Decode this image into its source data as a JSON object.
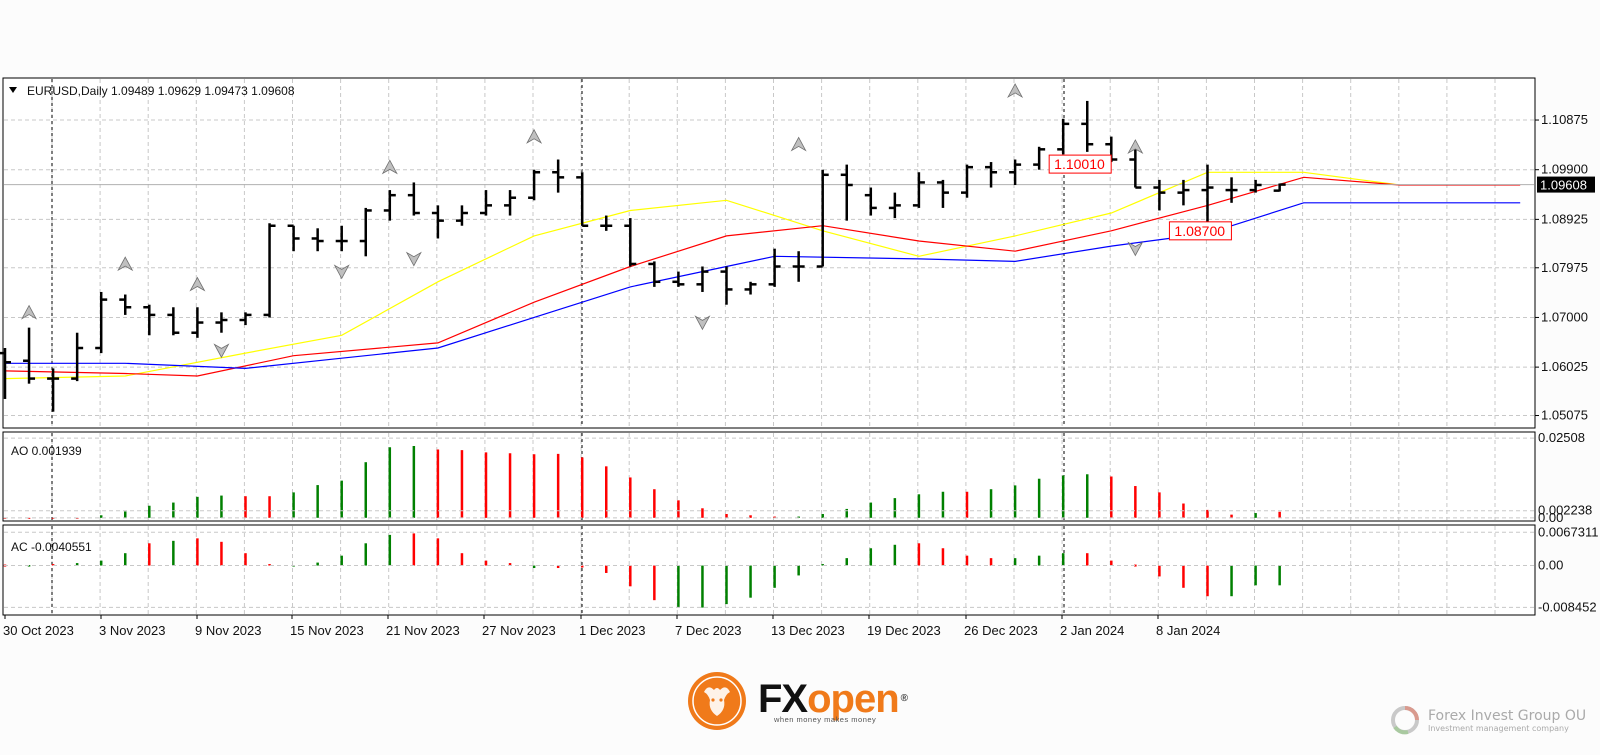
{
  "chart_data": [
    {
      "type": "ohlc",
      "header": "EURUSD,Daily  1.09489 1.09629 1.09473 1.09608",
      "symbol": "EURUSD",
      "timeframe": "Daily",
      "last_ohlc": {
        "open": 1.09489,
        "high": 1.09629,
        "low": 1.09473,
        "close": 1.09608
      },
      "current_price_label": "1.09608",
      "ylim": [
        1.0483,
        1.117
      ],
      "y_ticks": [
        "1.10875",
        "1.09900",
        "1.08925",
        "1.07975",
        "1.07000",
        "1.06025",
        "1.05075"
      ],
      "x_ticks": [
        "30 Oct 2023",
        "3 Nov 2023",
        "9 Nov 2023",
        "15 Nov 2023",
        "21 Nov 2023",
        "27 Nov 2023",
        "1 Dec 2023",
        "7 Dec 2023",
        "13 Dec 2023",
        "19 Dec 2023",
        "26 Dec 2023",
        "2 Jan 2024",
        "8 Jan 2024"
      ],
      "month_separators": [
        "1 Nov 2023",
        "1 Dec 2023",
        "1 Jan 2024"
      ],
      "grid": true,
      "bars": [
        [
          1.063,
          1.064,
          1.054,
          1.0612
        ],
        [
          1.0615,
          1.068,
          1.057,
          1.058
        ],
        [
          1.058,
          1.06,
          1.0515,
          1.058
        ],
        [
          1.058,
          1.067,
          1.0575,
          1.064
        ],
        [
          1.064,
          1.075,
          1.063,
          1.0735
        ],
        [
          1.0735,
          1.0745,
          1.0705,
          1.072
        ],
        [
          1.072,
          1.0725,
          1.0665,
          1.0705
        ],
        [
          1.0705,
          1.072,
          1.0665,
          1.067
        ],
        [
          1.067,
          1.072,
          1.066,
          1.069
        ],
        [
          1.069,
          1.071,
          1.067,
          1.0695
        ],
        [
          1.0695,
          1.071,
          1.0685,
          1.0705
        ],
        [
          1.0705,
          1.0885,
          1.07,
          1.088
        ],
        [
          1.088,
          1.088,
          1.083,
          1.0855
        ],
        [
          1.0855,
          1.0875,
          1.083,
          1.085
        ],
        [
          1.085,
          1.088,
          1.083,
          1.085
        ],
        [
          1.085,
          1.0915,
          1.082,
          1.091
        ],
        [
          1.091,
          1.095,
          1.089,
          1.094
        ],
        [
          1.094,
          1.0965,
          1.09,
          1.0905
        ],
        [
          1.0905,
          1.092,
          1.0855,
          1.089
        ],
        [
          1.089,
          1.092,
          1.088,
          1.0905
        ],
        [
          1.0905,
          1.095,
          1.09,
          1.092
        ],
        [
          1.092,
          1.095,
          1.09,
          1.0935
        ],
        [
          1.0935,
          1.099,
          1.093,
          1.0985
        ],
        [
          1.0985,
          1.101,
          1.0945,
          1.0975
        ],
        [
          1.0975,
          1.0985,
          1.088,
          1.088
        ],
        [
          1.088,
          1.09,
          1.087,
          1.088
        ],
        [
          1.088,
          1.0895,
          1.08,
          1.0805
        ],
        [
          1.0805,
          1.081,
          1.076,
          1.077
        ],
        [
          1.077,
          1.079,
          1.076,
          1.0765
        ],
        [
          1.0765,
          1.08,
          1.075,
          1.079
        ],
        [
          1.079,
          1.08,
          1.0725,
          1.0755
        ],
        [
          1.0755,
          1.077,
          1.0745,
          1.0765
        ],
        [
          1.0765,
          1.0835,
          1.076,
          1.08
        ],
        [
          1.08,
          1.083,
          1.077,
          1.08
        ],
        [
          1.08,
          1.099,
          1.08,
          1.098
        ],
        [
          1.098,
          1.1,
          1.089,
          1.096
        ],
        [
          1.094,
          1.0955,
          1.09,
          1.0915
        ],
        [
          1.0915,
          1.0945,
          1.0895,
          1.092
        ],
        [
          1.092,
          1.0985,
          1.0915,
          1.0965
        ],
        [
          1.0965,
          1.097,
          1.0915,
          1.0945
        ],
        [
          1.0945,
          1.1,
          1.0935,
          1.0995
        ],
        [
          1.0995,
          1.1005,
          1.0955,
          1.0985
        ],
        [
          1.0985,
          1.101,
          1.096,
          1.1
        ],
        [
          1.1,
          1.1035,
          1.099,
          1.103
        ],
        [
          1.103,
          1.109,
          1.102,
          1.108
        ],
        [
          1.108,
          1.1125,
          1.1025,
          1.104
        ],
        [
          1.104,
          1.1055,
          1.1005,
          1.101
        ],
        [
          1.101,
          1.104,
          1.0955,
          1.0955
        ],
        [
          1.0955,
          1.097,
          1.091,
          1.0945
        ],
        [
          1.0945,
          1.097,
          1.092,
          1.095
        ],
        [
          1.095,
          1.1,
          1.087,
          1.0955
        ],
        [
          1.095,
          1.0975,
          1.0925,
          1.095
        ],
        [
          1.095,
          1.097,
          1.0945,
          1.096
        ],
        [
          1.09489,
          1.09629,
          1.09473,
          1.09608
        ]
      ],
      "moving_averages": [
        {
          "color": "#ffff00",
          "points": [
            [
              0,
              1.058
            ],
            [
              5,
              1.0585
            ],
            [
              10,
              1.063
            ],
            [
              14,
              1.0665
            ],
            [
              18,
              1.077
            ],
            [
              22,
              1.086
            ],
            [
              26,
              1.091
            ],
            [
              30,
              1.093
            ],
            [
              34,
              1.087
            ],
            [
              38,
              1.082
            ],
            [
              42,
              1.086
            ],
            [
              46,
              1.0905
            ],
            [
              50,
              1.0985
            ],
            [
              54,
              1.0985
            ],
            [
              58,
              1.096
            ]
          ]
        },
        {
          "color": "#ff0000",
          "points": [
            [
              0,
              1.0595
            ],
            [
              5,
              1.059
            ],
            [
              8,
              1.0585
            ],
            [
              12,
              1.0625
            ],
            [
              18,
              1.065
            ],
            [
              22,
              1.073
            ],
            [
              26,
              1.08
            ],
            [
              30,
              1.086
            ],
            [
              34,
              1.088
            ],
            [
              38,
              1.085
            ],
            [
              42,
              1.083
            ],
            [
              46,
              1.087
            ],
            [
              50,
              1.092
            ],
            [
              54,
              1.0975
            ],
            [
              58,
              1.096
            ],
            [
              63,
              1.096
            ]
          ]
        },
        {
          "color": "#0000ff",
          "points": [
            [
              0,
              1.061
            ],
            [
              5,
              1.061
            ],
            [
              10,
              1.06
            ],
            [
              14,
              1.062
            ],
            [
              18,
              1.064
            ],
            [
              22,
              1.07
            ],
            [
              26,
              1.076
            ],
            [
              30,
              1.08
            ],
            [
              32,
              1.082
            ],
            [
              38,
              1.0815
            ],
            [
              42,
              1.081
            ],
            [
              46,
              1.084
            ],
            [
              50,
              1.0865
            ],
            [
              54,
              1.0925
            ],
            [
              58,
              1.0925
            ],
            [
              63,
              1.0925
            ]
          ]
        }
      ],
      "arrows_up": [
        [
          1,
          1.069
        ],
        [
          5,
          1.0785
        ],
        [
          8,
          1.0745
        ],
        [
          16,
          1.0975
        ],
        [
          22,
          1.1035
        ],
        [
          33,
          1.102
        ],
        [
          42,
          1.1125
        ],
        [
          47,
          1.1015
        ]
      ],
      "arrows_down": [
        [
          9,
          1.0655
        ],
        [
          14,
          1.081
        ],
        [
          17,
          1.0835
        ],
        [
          29,
          1.071
        ],
        [
          47,
          1.0855
        ]
      ],
      "annotations": [
        {
          "text": "1.10010",
          "bar": 43.5,
          "value": 1.1001,
          "color": "#ff0000"
        },
        {
          "text": "1.08700",
          "bar": 48.5,
          "value": 1.087,
          "color": "#ff0000"
        }
      ]
    },
    {
      "type": "bar",
      "name": "AO",
      "header": "AO 0.001939",
      "y_ticks": [
        "0.02508",
        "0.002238",
        "0.00"
      ],
      "ylim": [
        -0.001,
        0.027
      ],
      "values": [
        0,
        0,
        0,
        0,
        0.0008,
        0.002,
        0.0038,
        0.0048,
        0.0066,
        0.007,
        0.0068,
        0.0068,
        0.008,
        0.0103,
        0.0117,
        0.0175,
        0.0222,
        0.0226,
        0.0215,
        0.0213,
        0.0206,
        0.0203,
        0.02,
        0.0201,
        0.019,
        0.0162,
        0.0127,
        0.009,
        0.0055,
        0.003,
        0.0012,
        0.0008,
        0.0004,
        0.0004,
        0.0012,
        0.0028,
        0.0048,
        0.0062,
        0.0074,
        0.0082,
        0.0082,
        0.009,
        0.0102,
        0.0123,
        0.0133,
        0.0137,
        0.013,
        0.01,
        0.008,
        0.0045,
        0.0025,
        0.001,
        0.0015,
        0.0019
      ],
      "colors": [
        "r",
        "r",
        "r",
        "r",
        "g",
        "g",
        "g",
        "g",
        "g",
        "g",
        "r",
        "r",
        "g",
        "g",
        "g",
        "g",
        "g",
        "g",
        "r",
        "r",
        "r",
        "r",
        "r",
        "r",
        "r",
        "r",
        "r",
        "r",
        "r",
        "r",
        "r",
        "r",
        "r",
        "g",
        "g",
        "g",
        "g",
        "g",
        "g",
        "g",
        "r",
        "g",
        "g",
        "g",
        "g",
        "g",
        "r",
        "r",
        "r",
        "r",
        "r",
        "r",
        "g",
        "r"
      ]
    },
    {
      "type": "bar",
      "name": "AC",
      "header": "AC -0.0040551",
      "y_ticks": [
        "0.0067311",
        "0.00",
        "-0.008452"
      ],
      "ylim": [
        -0.01,
        0.0082
      ],
      "values": [
        0.0002,
        0.0001,
        0.0003,
        0.0005,
        0.001,
        0.0025,
        0.0045,
        0.005,
        0.0055,
        0.0048,
        0.0025,
        0.0003,
        0.0001,
        0.0006,
        0.002,
        0.0045,
        0.0062,
        0.0065,
        0.0055,
        0.0025,
        0.001,
        0.0005,
        -0.0005,
        -0.0005,
        -0.0002,
        -0.0015,
        -0.0042,
        -0.007,
        -0.0085,
        -0.0085,
        -0.0078,
        -0.0065,
        -0.0045,
        -0.002,
        0.0003,
        0.0015,
        0.0035,
        0.0042,
        0.0045,
        0.0035,
        0.002,
        0.0015,
        0.0015,
        0.002,
        0.0025,
        0.0025,
        0.001,
        0.0002,
        -0.0022,
        -0.0045,
        -0.0062,
        -0.0062,
        -0.004,
        -0.004
      ],
      "colors": [
        "r",
        "g",
        "r",
        "g",
        "g",
        "g",
        "r",
        "g",
        "r",
        "r",
        "r",
        "r",
        "g",
        "g",
        "g",
        "g",
        "g",
        "r",
        "r",
        "r",
        "r",
        "r",
        "g",
        "r",
        "r",
        "r",
        "r",
        "r",
        "g",
        "g",
        "g",
        "g",
        "g",
        "g",
        "g",
        "g",
        "g",
        "g",
        "r",
        "r",
        "r",
        "r",
        "g",
        "g",
        "g",
        "r",
        "r",
        "r",
        "r",
        "r",
        "r",
        "g",
        "g",
        "g"
      ]
    }
  ],
  "branding": {
    "brand_fx": "FX",
    "brand_open": "open",
    "brand_reg": "®",
    "brand_tagline": "when money makes money",
    "company_name": "Forex Invest Group OU",
    "company_sub": "Investment management company",
    "accent": "#f07a1a"
  }
}
